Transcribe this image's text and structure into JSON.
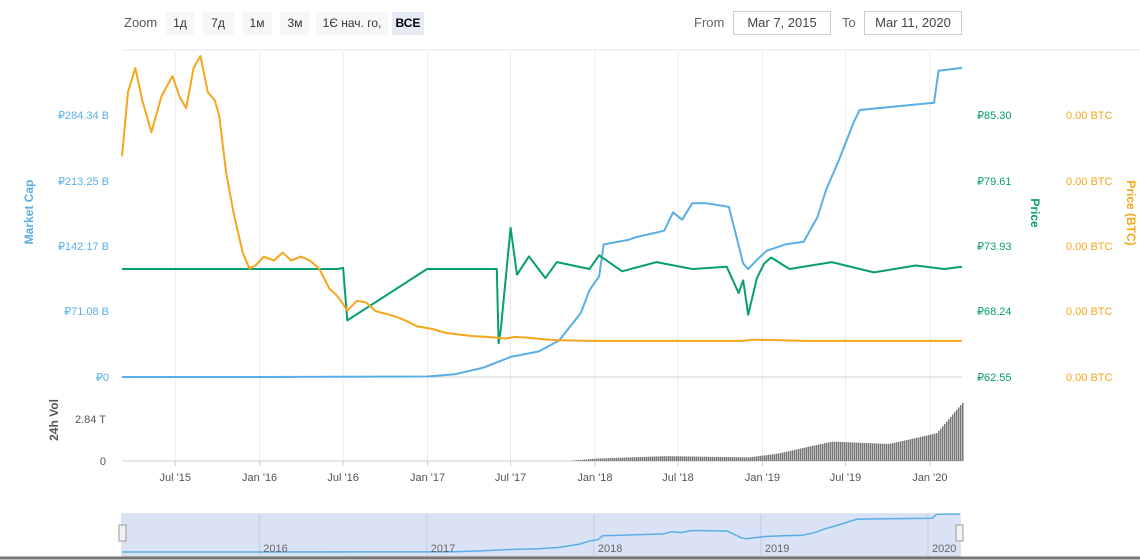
{
  "toolbar": {
    "zoom_label": "Zoom",
    "buttons": [
      {
        "label": "1д",
        "active": false
      },
      {
        "label": "7д",
        "active": false
      },
      {
        "label": "1м",
        "active": false
      },
      {
        "label": "3м",
        "active": false
      },
      {
        "label": "1Є нач. го,",
        "active": false
      },
      {
        "label": "ВСЕ",
        "active": true
      }
    ],
    "from_label": "From",
    "from_value": "Mar 7, 2015",
    "to_label": "To",
    "to_value": "Mar 11, 2020"
  },
  "colors": {
    "market_cap": "#5aaee6",
    "price": "#079e72",
    "price_btc": "#f4a61c",
    "volume": "#777777",
    "navigator_fill": "#d4def3"
  },
  "chart_data": {
    "type": "line",
    "x_range": [
      "2015-03-07",
      "2020-03-11"
    ],
    "x_tick_labels": [
      "Jul '15",
      "Jan '16",
      "Jul '16",
      "Jan '17",
      "Jul '17",
      "Jan '18",
      "Jul '18",
      "Jan '19",
      "Jul '19",
      "Jan '20"
    ],
    "axes": {
      "market_cap": {
        "label": "Market Cap",
        "ticks": [
          "₽284.34 B",
          "₽213.25 B",
          "₽142.17 B",
          "₽71.08 B",
          "₽0"
        ],
        "range": [
          0,
          355.4
        ]
      },
      "price": {
        "label": "Price",
        "ticks": [
          "₽85.30",
          "₽79.61",
          "₽73.93",
          "₽68.24",
          "₽62.55"
        ],
        "range": [
          62.55,
          90.98
        ]
      },
      "price_btc": {
        "label": "Price (BTC)",
        "ticks": [
          "0.00 BTC",
          "0.00 BTC",
          "0.00 BTC",
          "0.00 BTC",
          "0.00 BTC"
        ]
      },
      "volume": {
        "label": "24h Vol",
        "ticks": [
          "2.84 T",
          "0"
        ],
        "range": [
          0,
          5.68
        ]
      }
    },
    "series": [
      {
        "name": "Market Cap",
        "axis": "market_cap",
        "x": [
          "2015-03-07",
          "2016-01-01",
          "2017-01-01",
          "2017-03-01",
          "2017-05-01",
          "2017-07-01",
          "2017-09-01",
          "2017-10-15",
          "2017-12-01",
          "2017-12-20",
          "2018-01-10",
          "2018-01-20",
          "2018-03-15",
          "2018-04-01",
          "2018-06-01",
          "2018-06-20",
          "2018-07-10",
          "2018-08-01",
          "2018-09-01",
          "2018-10-20",
          "2018-11-20",
          "2018-12-01",
          "2018-12-20",
          "2019-01-10",
          "2019-02-20",
          "2019-04-01",
          "2019-05-01",
          "2019-05-20",
          "2019-06-15",
          "2019-07-20",
          "2019-08-01",
          "2019-12-01",
          "2020-01-10",
          "2020-01-20",
          "2020-03-11"
        ],
        "values": [
          0,
          0,
          0.5,
          3,
          10,
          22,
          28,
          40,
          70,
          95,
          110,
          145,
          150,
          153,
          160,
          180,
          172,
          190,
          190,
          186,
          124,
          118,
          128,
          138,
          145,
          148,
          175,
          205,
          235,
          280,
          292,
          298,
          300,
          335,
          338
        ]
      },
      {
        "name": "Price",
        "axis": "price",
        "x": [
          "2015-03-07",
          "2016-06-20",
          "2016-07-01",
          "2016-07-10",
          "2016-12-31",
          "2017-06-01",
          "2017-06-05",
          "2017-06-10",
          "2017-07-01",
          "2017-07-15",
          "2017-08-10",
          "2017-09-15",
          "2017-10-10",
          "2017-12-20",
          "2018-01-10",
          "2018-03-01",
          "2018-05-15",
          "2018-08-01",
          "2018-10-15",
          "2018-11-10",
          "2018-11-20",
          "2018-12-01",
          "2018-12-20",
          "2019-01-05",
          "2019-01-20",
          "2019-03-01",
          "2019-06-01",
          "2019-09-01",
          "2019-12-01",
          "2020-02-01",
          "2020-03-11"
        ],
        "values": [
          72.0,
          72.0,
          72.1,
          67.5,
          72.0,
          72.0,
          65.5,
          66.8,
          75.6,
          71.5,
          73.1,
          71.2,
          72.6,
          72.0,
          73.2,
          71.8,
          72.6,
          72.0,
          72.2,
          69.9,
          71.0,
          68.0,
          71.2,
          72.5,
          73.0,
          72.0,
          72.6,
          71.7,
          72.3,
          72.0,
          72.2
        ]
      },
      {
        "name": "Price (BTC)",
        "axis": "price_btc",
        "x": [
          "2015-03-07",
          "2015-03-20",
          "2015-04-05",
          "2015-04-20",
          "2015-05-10",
          "2015-06-01",
          "2015-06-25",
          "2015-07-10",
          "2015-07-25",
          "2015-08-10",
          "2015-08-25",
          "2015-09-10",
          "2015-09-25",
          "2015-10-05",
          "2015-10-20",
          "2015-11-05",
          "2015-11-25",
          "2015-12-10",
          "2015-12-25",
          "2016-01-10",
          "2016-02-01",
          "2016-02-20",
          "2016-03-10",
          "2016-03-31",
          "2016-04-20",
          "2016-05-10",
          "2016-06-01",
          "2016-06-20",
          "2016-07-10",
          "2016-07-31",
          "2016-08-20",
          "2016-09-10",
          "2016-10-01",
          "2016-10-25",
          "2016-11-15",
          "2016-12-10",
          "2017-01-10",
          "2017-02-10",
          "2017-03-10",
          "2017-04-10",
          "2017-05-10",
          "2017-06-01",
          "2017-06-20",
          "2017-07-10",
          "2017-08-10",
          "2017-09-10",
          "2017-10-10",
          "2017-11-10",
          "2017-12-20",
          "2018-02-01",
          "2018-04-01",
          "2018-06-01",
          "2018-08-01",
          "2018-10-15",
          "2018-11-20",
          "2018-12-10",
          "2019-01-01",
          "2019-02-01",
          "2019-04-01",
          "2019-06-01",
          "2019-08-01",
          "2019-10-01",
          "2019-12-01",
          "2020-01-01",
          "2020-02-01",
          "2020-03-11"
        ],
        "values": [
          2.3,
          3.1,
          3.4,
          3.0,
          2.6,
          3.05,
          3.3,
          3.05,
          2.9,
          3.4,
          3.55,
          3.1,
          3.0,
          2.8,
          2.1,
          1.6,
          1.1,
          0.9,
          0.95,
          1.05,
          1.0,
          1.1,
          1.0,
          1.05,
          1.0,
          0.9,
          0.65,
          0.55,
          0.38,
          0.5,
          0.48,
          0.37,
          0.34,
          0.3,
          0.25,
          0.18,
          0.15,
          0.1,
          0.08,
          0.06,
          0.05,
          0.04,
          0.03,
          0.05,
          0.04,
          0.02,
          0.01,
          0.005,
          0.0,
          0.0,
          0.0,
          0.0,
          0.0,
          0.0,
          0.0,
          0.015,
          0.012,
          0.01,
          0.0,
          0.0,
          0.0,
          0.0,
          0.0,
          0.0,
          0.0,
          0.0
        ]
      }
    ],
    "volume_series": {
      "name": "24h Vol",
      "axis": "volume",
      "x": [
        "2015-03-07",
        "2017-11-01",
        "2018-01-01",
        "2018-06-01",
        "2018-12-01",
        "2019-02-01",
        "2019-04-01",
        "2019-06-01",
        "2019-08-01",
        "2019-10-01",
        "2019-12-01",
        "2020-01-15",
        "2020-03-11"
      ],
      "values": [
        0,
        0,
        0.2,
        0.4,
        0.3,
        0.6,
        1.1,
        1.6,
        1.5,
        1.4,
        1.9,
        2.3,
        4.8
      ]
    },
    "navigator_labels": [
      "2016",
      "2017",
      "2018",
      "2019",
      "2020"
    ],
    "legend": "none",
    "grid": "vertical"
  }
}
